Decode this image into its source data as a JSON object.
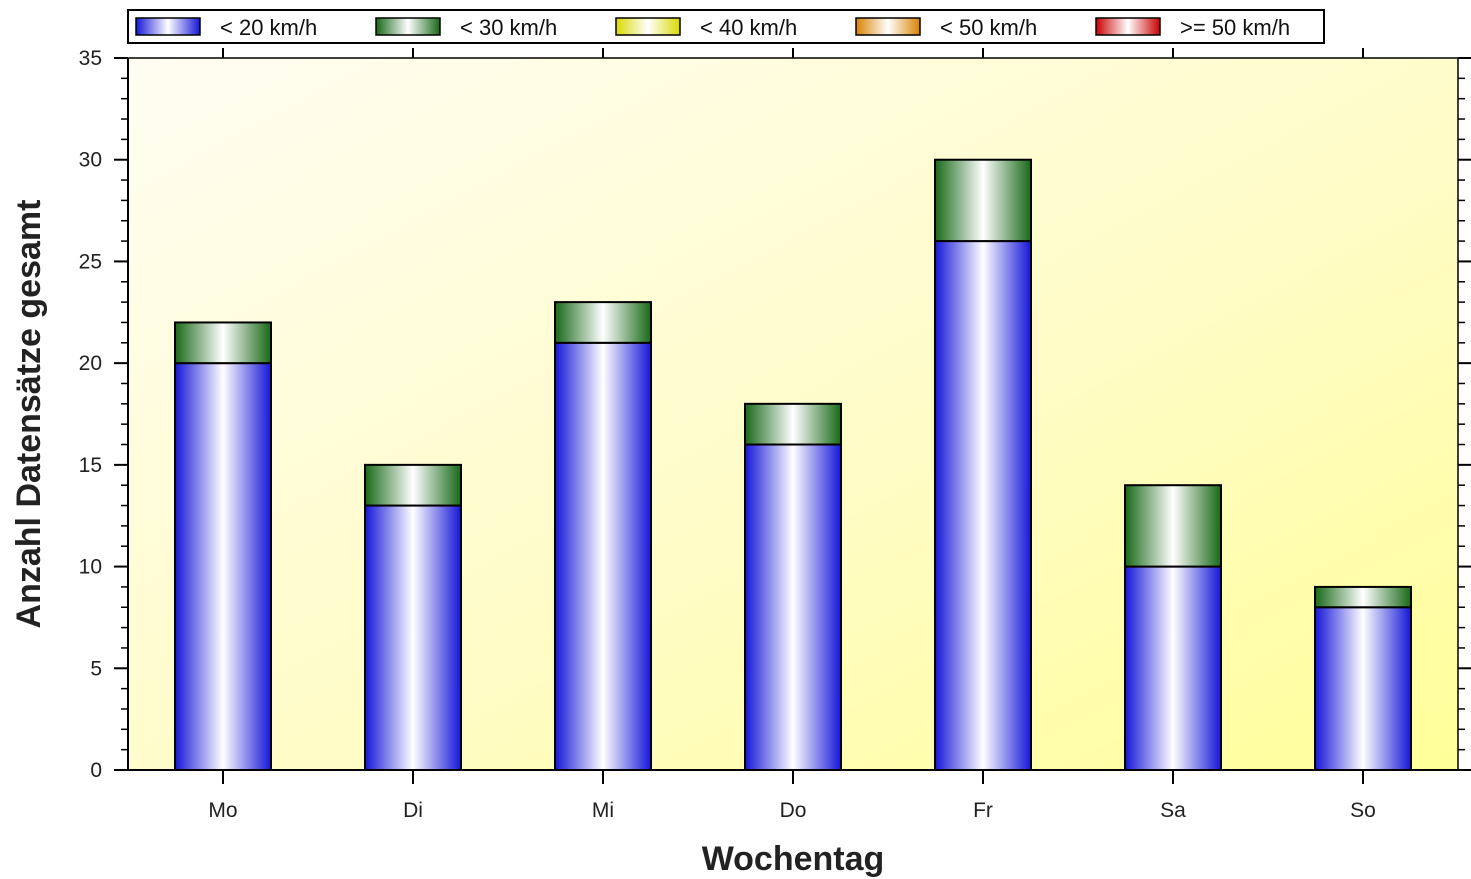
{
  "chart_data": {
    "type": "bar",
    "stacked": true,
    "xlabel": "Wochentag",
    "ylabel": "Anzahl Datensätze gesamt",
    "categories": [
      "Mo",
      "Di",
      "Mi",
      "Do",
      "Fr",
      "Sa",
      "So"
    ],
    "ylim": [
      0,
      35
    ],
    "yticks": [
      0,
      5,
      10,
      15,
      20,
      25,
      30,
      35
    ],
    "legend_position": "top",
    "series": [
      {
        "name": "< 20 km/h",
        "values": [
          20,
          13,
          21,
          16,
          26,
          10,
          8
        ],
        "color": "#1a1aff"
      },
      {
        "name": "< 30 km/h",
        "values": [
          2,
          2,
          2,
          2,
          4,
          4,
          1
        ],
        "color": "#1c7a1c"
      },
      {
        "name": "< 40 km/h",
        "values": [
          0,
          0,
          0,
          0,
          0,
          0,
          0
        ],
        "color": "#ffff00"
      },
      {
        "name": "< 50 km/h",
        "values": [
          0,
          0,
          0,
          0,
          0,
          0,
          0
        ],
        "color": "#ff9900"
      },
      {
        "name": ">= 50 km/h",
        "values": [
          0,
          0,
          0,
          0,
          0,
          0,
          0
        ],
        "color": "#ee0000"
      }
    ],
    "background": {
      "from": "#ffffff",
      "to": "#ffff99"
    }
  }
}
